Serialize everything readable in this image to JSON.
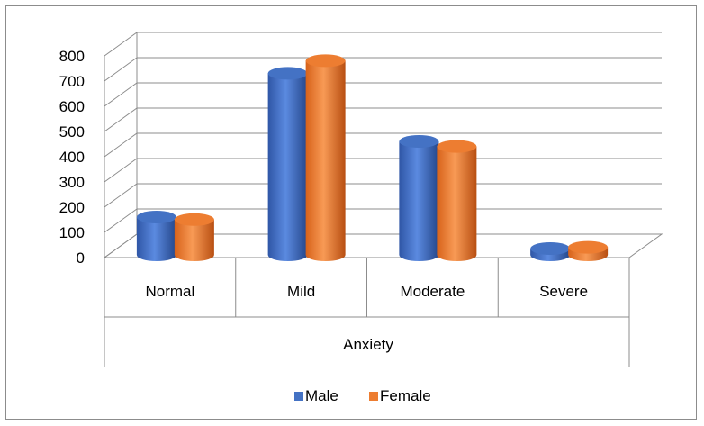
{
  "chart_data": {
    "type": "bar",
    "style": "3d-cylinder",
    "categories": [
      "Normal",
      "Mild",
      "Moderate",
      "Severe"
    ],
    "group_label": "Anxiety",
    "series": [
      {
        "name": "Male",
        "color": "#4472C4",
        "values": [
          150,
          720,
          450,
          25
        ]
      },
      {
        "name": "Female",
        "color": "#ED7D31",
        "values": [
          140,
          770,
          430,
          30
        ]
      }
    ],
    "yticks": [
      0,
      100,
      200,
      300,
      400,
      500,
      600,
      700,
      800
    ],
    "ylim": [
      0,
      800
    ],
    "grid": true,
    "legend_position": "bottom"
  }
}
